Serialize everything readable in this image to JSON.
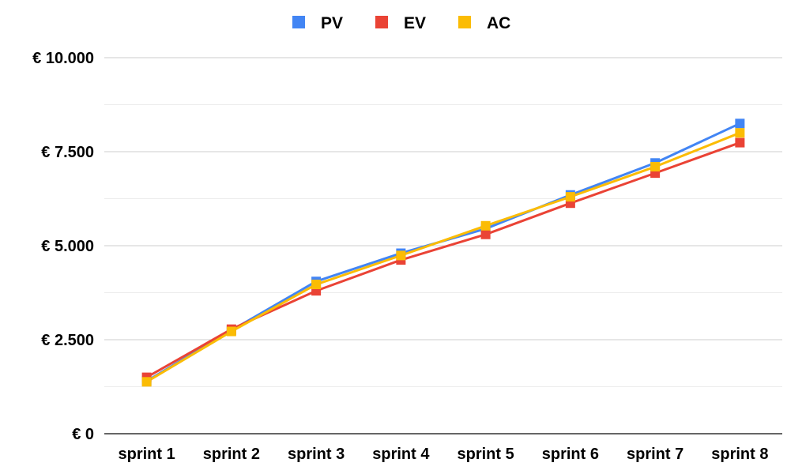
{
  "chart_data": {
    "type": "line",
    "title": "",
    "xlabel": "",
    "ylabel": "",
    "categories": [
      "sprint 1",
      "sprint 2",
      "sprint 3",
      "sprint 4",
      "sprint 5",
      "sprint 6",
      "sprint 7",
      "sprint 8"
    ],
    "y_ticks": [
      0,
      2500,
      5000,
      7500,
      10000
    ],
    "y_tick_labels": [
      "€ 0",
      "€ 2.500",
      "€ 5.000",
      "€ 7.500",
      "€ 10.000"
    ],
    "ylim": [
      0,
      10000
    ],
    "grid": true,
    "legend_position": "top-center",
    "series": [
      {
        "name": "PV",
        "color": "#4285F4",
        "values": [
          1400,
          2750,
          4050,
          4800,
          5450,
          6350,
          7200,
          8250
        ]
      },
      {
        "name": "EV",
        "color": "#EA4335",
        "values": [
          1500,
          2780,
          3800,
          4620,
          5300,
          6130,
          6930,
          7740
        ]
      },
      {
        "name": "AC",
        "color": "#FBBC04",
        "values": [
          1380,
          2720,
          3970,
          4740,
          5530,
          6300,
          7100,
          8000
        ]
      }
    ]
  }
}
